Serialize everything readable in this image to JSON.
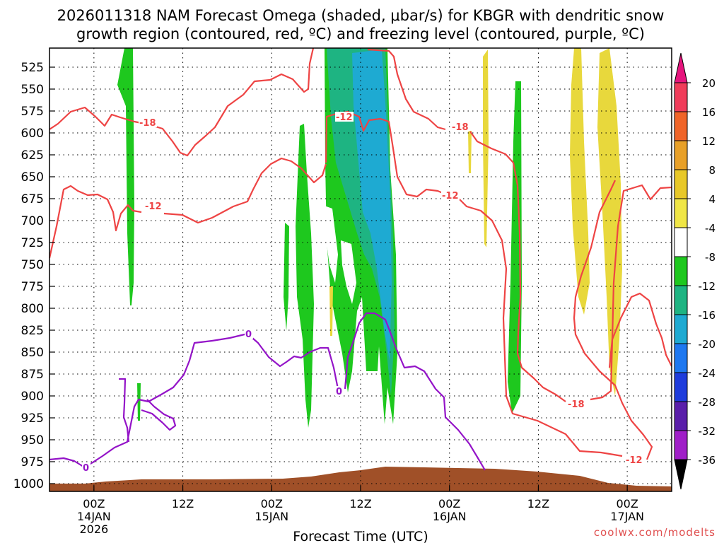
{
  "chart_data": {
    "type": "time-height cross section",
    "title_line1": "2026011318 NAM Forecast Omega (shaded, μbar/s) for KBGR with dendritic snow",
    "title_line2": "growth region (contoured, red, ºC) and freezing level (contoured, purple, ºC)",
    "xlabel": "Forecast Time (UTC)",
    "watermark": "coolwx.com/modelts",
    "y_axis": {
      "units": "hPa",
      "ticks": [
        525,
        550,
        575,
        600,
        625,
        650,
        675,
        700,
        725,
        750,
        775,
        800,
        825,
        850,
        875,
        900,
        925,
        950,
        975,
        1000
      ]
    },
    "x_axis": {
      "units": "forecast hour",
      "range": [
        0,
        84
      ],
      "ticks": [
        {
          "hour": 6,
          "label": "00Z",
          "sub1": "14JAN",
          "sub2": "2026"
        },
        {
          "hour": 18,
          "label": "12Z",
          "sub1": "",
          "sub2": ""
        },
        {
          "hour": 30,
          "label": "00Z",
          "sub1": "15JAN",
          "sub2": ""
        },
        {
          "hour": 42,
          "label": "12Z",
          "sub1": "",
          "sub2": ""
        },
        {
          "hour": 54,
          "label": "00Z",
          "sub1": "16JAN",
          "sub2": ""
        },
        {
          "hour": 66,
          "label": "12Z",
          "sub1": "",
          "sub2": ""
        },
        {
          "hour": 78,
          "label": "00Z",
          "sub1": "17JAN",
          "sub2": ""
        }
      ]
    },
    "colorbar": {
      "labels": [
        "20",
        "16",
        "12",
        "8",
        "4",
        "-4",
        "-8",
        "-12",
        "-16",
        "-20",
        "-24",
        "-28",
        "-32",
        "-36"
      ],
      "colors": [
        "#f03c5a",
        "#f06428",
        "#e8a028",
        "#e8c828",
        "#f0e646",
        "#ffffff",
        "#1ec81e",
        "#1eb482",
        "#1eaad2",
        "#1e78f0",
        "#1e3cdc",
        "#5a1eaa",
        "#a01ec8",
        "#a0a0a0"
      ]
    },
    "contour_labels": [
      {
        "text": "-18",
        "color": "red"
      },
      {
        "text": "-12",
        "color": "red"
      },
      {
        "text": "-12",
        "color": "red"
      },
      {
        "text": "-18",
        "color": "red"
      },
      {
        "text": "-12",
        "color": "red"
      },
      {
        "text": "-18",
        "color": "red"
      },
      {
        "text": "-12",
        "color": "red"
      },
      {
        "text": "0",
        "color": "purple"
      },
      {
        "text": "0",
        "color": "purple"
      },
      {
        "text": "0",
        "color": "purple"
      }
    ],
    "series": [
      {
        "name": "omega weak ascent (-4 to -8)",
        "color": "#1ec81e",
        "hours": [
          10,
          34,
          36,
          40,
          44,
          46,
          47,
          64,
          65
        ]
      },
      {
        "name": "omega moderate ascent (-8 to -12)",
        "color": "#1eb482",
        "hours": [
          39,
          42,
          44
        ]
      },
      {
        "name": "omega strong ascent (-12 to -16)",
        "color": "#1eaad2",
        "hours": [
          43,
          44
        ]
      },
      {
        "name": "omega weak descent (4 to 8)",
        "color": "#e8d83c",
        "hours": [
          40,
          57,
          59,
          71,
          73,
          75
        ]
      },
      {
        "name": "freezing level 0 C (hPa)",
        "hours": [
          1,
          4,
          16,
          22,
          28,
          30,
          32,
          36,
          39,
          42,
          45,
          48,
          52,
          55,
          58
        ],
        "values": [
          960,
          968,
          810,
          805,
          793,
          805,
          827,
          830,
          870,
          780,
          790,
          830,
          870,
          918,
          977
        ]
      },
      {
        "name": "-12 C isotherm (hPa)",
        "hours": [
          0,
          3,
          7,
          12,
          19,
          26,
          32,
          35,
          38,
          41,
          45,
          50,
          55,
          60,
          63,
          67,
          72,
          77,
          81,
          84
        ],
        "values": [
          705,
          638,
          668,
          655,
          673,
          658,
          612,
          590,
          620,
          585,
          570,
          605,
          648,
          662,
          690,
          880,
          960,
          965,
          945,
          830
        ]
      }
    ]
  }
}
